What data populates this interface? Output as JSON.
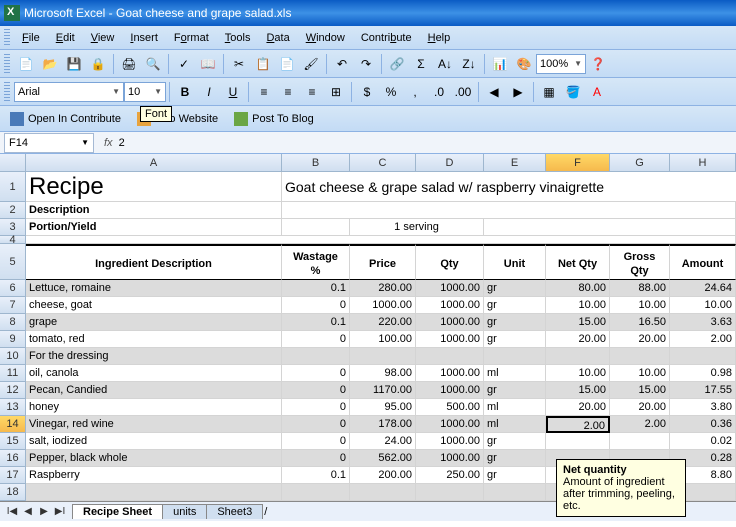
{
  "app": {
    "title": "Microsoft Excel - Goat cheese and grape salad.xls"
  },
  "menu": [
    "File",
    "Edit",
    "View",
    "Insert",
    "Format",
    "Tools",
    "Data",
    "Window",
    "Contribute",
    "Help"
  ],
  "font": {
    "name": "Arial",
    "size": "10",
    "popup": "Font"
  },
  "zoom": "100%",
  "contribute": {
    "open": "Open In Contribute",
    "publish": "h To Website",
    "blog": "Post To Blog"
  },
  "formula": {
    "cell": "F14",
    "value": "2"
  },
  "columns": [
    "A",
    "B",
    "C",
    "D",
    "E",
    "F",
    "G",
    "H"
  ],
  "recipe": {
    "label": "Recipe",
    "name": "Goat cheese & grape salad w/ raspberry vinaigrette",
    "desc_label": "Description",
    "portion_label": "Portion/Yield",
    "portion_value": "1 serving"
  },
  "headers": {
    "a": "Ingredient Description",
    "b": "Wastage %",
    "c": "Price",
    "d": "Qty",
    "e": "Unit",
    "f": "Net Qty",
    "g": "Gross Qty",
    "h": "Amount"
  },
  "rows": [
    {
      "n": 6,
      "a": "Lettuce, romaine",
      "b": "0.1",
      "c": "280.00",
      "d": "1000.00",
      "e": "gr",
      "f": "80.00",
      "g": "88.00",
      "h": "24.64",
      "grey": true
    },
    {
      "n": 7,
      "a": "cheese, goat",
      "b": "0",
      "c": "1000.00",
      "d": "1000.00",
      "e": "gr",
      "f": "10.00",
      "g": "10.00",
      "h": "10.00",
      "grey": false
    },
    {
      "n": 8,
      "a": "grape",
      "b": "0.1",
      "c": "220.00",
      "d": "1000.00",
      "e": "gr",
      "f": "15.00",
      "g": "16.50",
      "h": "3.63",
      "grey": true
    },
    {
      "n": 9,
      "a": "tomato, red",
      "b": "0",
      "c": "100.00",
      "d": "1000.00",
      "e": "gr",
      "f": "20.00",
      "g": "20.00",
      "h": "2.00",
      "grey": false
    },
    {
      "n": 10,
      "a": "For the dressing",
      "b": "",
      "c": "",
      "d": "",
      "e": "",
      "f": "",
      "g": "",
      "h": "",
      "grey": true
    },
    {
      "n": 11,
      "a": "oil, canola",
      "b": "0",
      "c": "98.00",
      "d": "1000.00",
      "e": "ml",
      "f": "10.00",
      "g": "10.00",
      "h": "0.98",
      "grey": false
    },
    {
      "n": 12,
      "a": "Pecan, Candied",
      "b": "0",
      "c": "1170.00",
      "d": "1000.00",
      "e": "gr",
      "f": "15.00",
      "g": "15.00",
      "h": "17.55",
      "grey": true
    },
    {
      "n": 13,
      "a": "honey",
      "b": "0",
      "c": "95.00",
      "d": "500.00",
      "e": "ml",
      "f": "20.00",
      "g": "20.00",
      "h": "3.80",
      "grey": false
    },
    {
      "n": 14,
      "a": "Vinegar, red wine",
      "b": "0",
      "c": "178.00",
      "d": "1000.00",
      "e": "ml",
      "f": "2.00",
      "g": "2.00",
      "h": "0.36",
      "grey": true,
      "active": true
    },
    {
      "n": 15,
      "a": "salt, iodized",
      "b": "0",
      "c": "24.00",
      "d": "1000.00",
      "e": "gr",
      "f": "",
      "g": "",
      "h": "0.02",
      "grey": false
    },
    {
      "n": 16,
      "a": "Pepper, black whole",
      "b": "0",
      "c": "562.00",
      "d": "1000.00",
      "e": "gr",
      "f": "",
      "g": "",
      "h": "0.28",
      "grey": true
    },
    {
      "n": 17,
      "a": "Raspberry",
      "b": "0.1",
      "c": "200.00",
      "d": "250.00",
      "e": "gr",
      "f": "",
      "g": "",
      "h": "8.80",
      "grey": false
    },
    {
      "n": 18,
      "a": "",
      "b": "",
      "c": "",
      "d": "",
      "e": "",
      "f": "",
      "g": "",
      "h": "",
      "grey": true
    }
  ],
  "tooltip": {
    "title": "Net quantity",
    "body": "Amount of ingredient after trimming, peeling, etc."
  },
  "tabs": [
    "Recipe Sheet",
    "units",
    "Sheet3"
  ]
}
